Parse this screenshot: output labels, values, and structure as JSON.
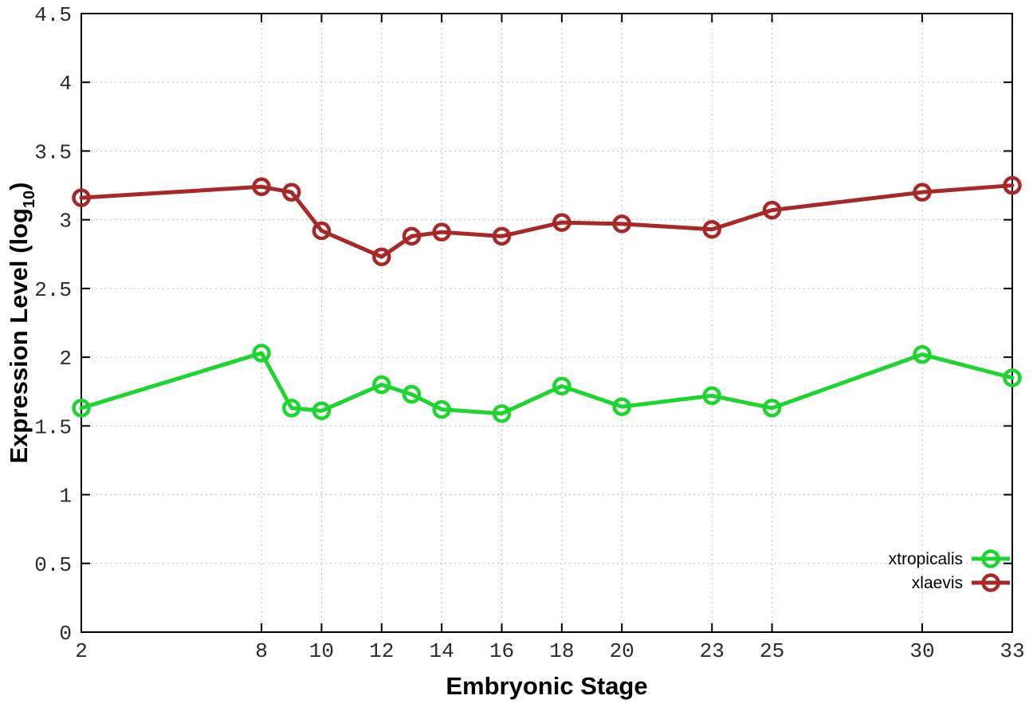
{
  "page": {
    "background": "#ffffff"
  },
  "chart_data": {
    "type": "line",
    "title": "",
    "xlabel": "Embryonic Stage",
    "ylabel": "Expression Level (log10)",
    "ylabel_parts": {
      "main": "Expression Level (log",
      "sub": "10",
      "suffix": ")"
    },
    "x": [
      2,
      8,
      9,
      10,
      12,
      13,
      14,
      16,
      18,
      20,
      23,
      25,
      30,
      33
    ],
    "series": [
      {
        "name": "xtropicalis",
        "color": "#1ed42f",
        "marker": "open-circle",
        "values": [
          1.63,
          2.03,
          1.63,
          1.61,
          1.8,
          1.73,
          1.62,
          1.59,
          1.79,
          1.64,
          1.72,
          1.63,
          2.02,
          1.85
        ]
      },
      {
        "name": "xlaevis",
        "color": "#a62828",
        "marker": "open-circle",
        "values": [
          3.16,
          3.24,
          3.2,
          2.92,
          2.73,
          2.88,
          2.91,
          2.88,
          2.98,
          2.97,
          2.93,
          3.07,
          3.2,
          3.25
        ]
      }
    ],
    "xlim": [
      2,
      33
    ],
    "ylim": [
      0,
      4.5
    ],
    "x_ticks": [
      2,
      8,
      10,
      12,
      14,
      16,
      18,
      20,
      23,
      25,
      30,
      33
    ],
    "y_ticks": [
      0,
      0.5,
      1,
      1.5,
      2,
      2.5,
      3,
      3.5,
      4,
      4.5
    ],
    "grid": true,
    "grid_style": "dotted",
    "legend_position": "bottom-right-inside",
    "legend": [
      "xtropicalis",
      "xlaevis"
    ]
  },
  "style": {
    "grid_color": "#bdbdbd",
    "axis_color": "#000000",
    "tick_label_color": "#2b2b2b",
    "plot_background": "#ffffff",
    "line_width": 5,
    "marker_radius": 9.5,
    "marker_stroke_width": 4.5
  }
}
